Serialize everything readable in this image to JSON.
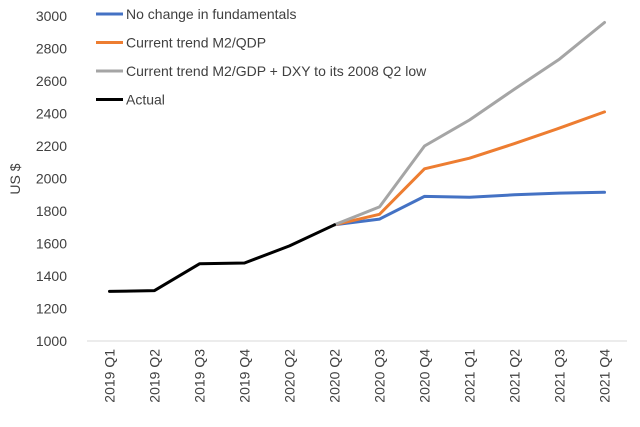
{
  "chart_data": {
    "type": "line",
    "title": "",
    "xlabel": "",
    "ylabel": "US $",
    "ylim": [
      1000,
      3000
    ],
    "yticks": [
      1000,
      1200,
      1400,
      1600,
      1800,
      2000,
      2200,
      2400,
      2600,
      2800,
      3000
    ],
    "grid": false,
    "legend_placement": "top-left",
    "categories": [
      "2019 Q1",
      "2019 Q2",
      "2019 Q3",
      "2019 Q4",
      "2020 Q2",
      "2020 Q2",
      "2020 Q3",
      "2020 Q4",
      "2021 Q1",
      "2021 Q2",
      "2021 Q3",
      "2021 Q4"
    ],
    "series": [
      {
        "name": "No change in fundamentals",
        "color": "#4472c4",
        "values": [
          null,
          null,
          null,
          null,
          null,
          1715,
          1750,
          1890,
          1885,
          1900,
          1910,
          1915
        ]
      },
      {
        "name": "Current trend M2/QDP",
        "color": "#ed7d31",
        "values": [
          null,
          null,
          null,
          null,
          null,
          1715,
          1780,
          2060,
          2125,
          2215,
          2310,
          2410
        ]
      },
      {
        "name": "Current trend M2/GDP + DXY to its 2008 Q2 low",
        "color": "#a5a5a5",
        "values": [
          null,
          null,
          null,
          null,
          null,
          1715,
          1825,
          2200,
          2360,
          2550,
          2735,
          2960
        ]
      },
      {
        "name": "Actual",
        "color": "#000000",
        "values": [
          1305,
          1310,
          1475,
          1480,
          1585,
          1715,
          null,
          null,
          null,
          null,
          null,
          null
        ]
      }
    ]
  }
}
